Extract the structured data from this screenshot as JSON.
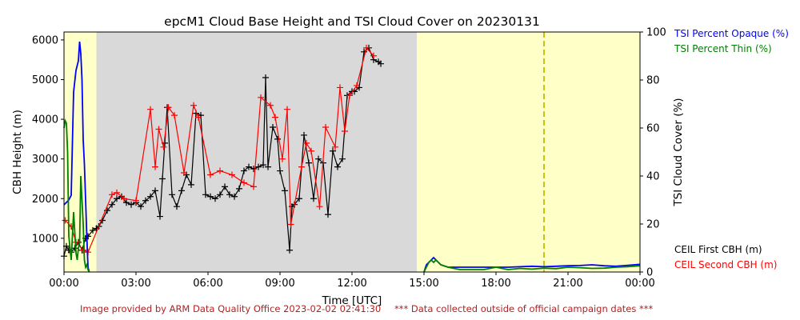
{
  "chart_data": {
    "type": "line",
    "title": "epcM1 Cloud Base Height and TSI Cloud Cover on 20230131",
    "xlabel": "Time [UTC]",
    "ylabel_left": "CBH Height (m)",
    "ylabel_right": "TSI Cloud Cover (%)",
    "x_unit": "hours UTC",
    "xlim": [
      0,
      24
    ],
    "ylim_left": [
      150,
      6200
    ],
    "ylim_right": [
      0,
      100
    ],
    "x_ticks": [
      {
        "v": 0,
        "label": "00:00"
      },
      {
        "v": 3,
        "label": "03:00"
      },
      {
        "v": 6,
        "label": "06:00"
      },
      {
        "v": 9,
        "label": "09:00"
      },
      {
        "v": 12,
        "label": "12:00"
      },
      {
        "v": 15,
        "label": "15:00"
      },
      {
        "v": 18,
        "label": "18:00"
      },
      {
        "v": 21,
        "label": "21:00"
      },
      {
        "v": 24,
        "label": "00:00"
      }
    ],
    "y_ticks_left": [
      1000,
      2000,
      3000,
      4000,
      5000,
      6000
    ],
    "y_ticks_right": [
      0,
      20,
      40,
      60,
      80,
      100
    ],
    "grid": false,
    "background_regions": [
      {
        "x0": 0.0,
        "x1": 1.35,
        "color": "#ffffc8"
      },
      {
        "x0": 1.35,
        "x1": 14.7,
        "color": "#d9d9d9"
      },
      {
        "x0": 14.7,
        "x1": 24.0,
        "color": "#ffffc8"
      }
    ],
    "vline": {
      "x": 20.0,
      "color": "#bfbf00",
      "style": "dashed"
    },
    "legend_right_top": [
      {
        "name": "TSI Percent Opaque (%)",
        "color": "#0000ff"
      },
      {
        "name": "TSI Percent Thin (%)",
        "color": "#008000"
      }
    ],
    "legend_right_bottom": [
      {
        "name": "CEIL First CBH (m)",
        "color": "#000000"
      },
      {
        "name": "CEIL Second CBH (m)",
        "color": "#ff0000"
      }
    ],
    "series": [
      {
        "name": "CEIL First CBH (m)",
        "axis": "left",
        "color": "#000000",
        "marker": "+",
        "x": [
          0.0,
          0.1,
          0.2,
          0.3,
          0.45,
          0.6,
          0.75,
          0.9,
          1.0,
          1.2,
          1.35,
          1.45,
          1.6,
          1.8,
          2.0,
          2.2,
          2.4,
          2.6,
          2.8,
          3.0,
          3.2,
          3.4,
          3.6,
          3.8,
          4.0,
          4.1,
          4.2,
          4.3,
          4.5,
          4.7,
          4.9,
          5.1,
          5.3,
          5.5,
          5.7,
          5.9,
          6.1,
          6.3,
          6.5,
          6.7,
          6.9,
          7.1,
          7.3,
          7.5,
          7.7,
          7.9,
          8.1,
          8.3,
          8.4,
          8.5,
          8.7,
          8.9,
          9.0,
          9.2,
          9.4,
          9.5,
          9.6,
          9.8,
          10.0,
          10.2,
          10.4,
          10.6,
          10.8,
          11.0,
          11.2,
          11.4,
          11.6,
          11.8,
          12.0,
          12.1,
          12.3,
          12.5,
          12.7,
          12.9,
          13.1,
          13.2
        ],
        "y": [
          550,
          800,
          700,
          650,
          750,
          900,
          700,
          1000,
          1050,
          1200,
          1250,
          1300,
          1450,
          1700,
          1850,
          2000,
          2050,
          1900,
          1850,
          1900,
          1800,
          1950,
          2050,
          2200,
          1550,
          2500,
          3400,
          4300,
          2100,
          1800,
          2200,
          2600,
          2350,
          4150,
          4100,
          2100,
          2050,
          2000,
          2100,
          2300,
          2100,
          2050,
          2250,
          2700,
          2800,
          2750,
          2800,
          2850,
          5050,
          2800,
          3800,
          3500,
          2700,
          2200,
          700,
          1800,
          1850,
          2000,
          3600,
          2900,
          2000,
          3000,
          2900,
          1600,
          3200,
          2800,
          3000,
          4600,
          4700,
          4700,
          4800,
          5700,
          5800,
          5500,
          5450,
          5400
        ]
      },
      {
        "name": "CEIL Second CBH (m)",
        "axis": "left",
        "color": "#ff0000",
        "marker": "+",
        "x": [
          0.05,
          0.3,
          0.5,
          0.8,
          1.0,
          2.0,
          2.2,
          2.5,
          3.0,
          3.6,
          3.8,
          3.95,
          4.15,
          4.35,
          4.6,
          5.0,
          5.4,
          5.6,
          6.1,
          6.5,
          7.0,
          7.5,
          7.9,
          8.2,
          8.6,
          8.8,
          9.1,
          9.3,
          9.45,
          9.9,
          10.1,
          10.3,
          10.65,
          10.9,
          11.3,
          11.5,
          11.7,
          11.9,
          12.2,
          12.6,
          12.9
        ],
        "y": [
          1450,
          1300,
          900,
          700,
          650,
          2100,
          2150,
          2000,
          1950,
          4250,
          2800,
          3750,
          3300,
          4300,
          4100,
          2650,
          4350,
          4050,
          2600,
          2700,
          2600,
          2400,
          2300,
          4550,
          4350,
          4050,
          3000,
          4250,
          1350,
          2800,
          3400,
          3200,
          1800,
          3800,
          3300,
          4800,
          3700,
          4600,
          4850,
          5800,
          5600
        ]
      },
      {
        "name": "TSI Percent Opaque (%)",
        "axis": "right",
        "color": "#0000ff",
        "x": [
          0.0,
          0.1,
          0.2,
          0.3,
          0.4,
          0.5,
          0.55,
          0.6,
          0.65,
          0.7,
          0.75,
          0.8,
          0.85,
          0.9,
          0.95,
          1.0,
          1.05,
          15.0,
          15.1,
          15.2,
          15.3,
          15.4,
          15.5,
          15.7,
          16.0,
          16.5,
          17.0,
          17.5,
          18.0,
          18.5,
          19.0,
          19.5,
          20.0,
          20.5,
          21.0,
          21.5,
          22.0,
          22.5,
          23.0,
          23.5,
          24.0
        ],
        "y": [
          28,
          29,
          30,
          32,
          75,
          84,
          86,
          88,
          96,
          91,
          80,
          55,
          45,
          30,
          15,
          2,
          0,
          0,
          3,
          4,
          5,
          6,
          5,
          3,
          2,
          2,
          2,
          2,
          2,
          2,
          2.2,
          2.4,
          2.2,
          2.4,
          2.6,
          2.7,
          3.0,
          2.6,
          2.4,
          2.8,
          3.2
        ]
      },
      {
        "name": "TSI Percent Thin (%)",
        "axis": "right",
        "color": "#008000",
        "x": [
          0.0,
          0.05,
          0.1,
          0.15,
          0.2,
          0.3,
          0.4,
          0.5,
          0.55,
          0.6,
          0.65,
          0.7,
          0.75,
          0.8,
          0.85,
          0.9,
          0.95,
          1.0,
          1.05,
          15.0,
          15.1,
          15.2,
          15.3,
          15.4,
          15.5,
          15.7,
          16.0,
          16.5,
          17.0,
          17.5,
          18.0,
          18.5,
          19.0,
          19.5,
          20.0,
          20.5,
          21.0,
          21.5,
          22.0,
          22.5,
          23.0,
          23.5,
          24.0
        ],
        "y": [
          60,
          63,
          62,
          50,
          15,
          5,
          25,
          8,
          5,
          10,
          12,
          40,
          30,
          20,
          5,
          2,
          3,
          1,
          0,
          0,
          2,
          4,
          5,
          4,
          5,
          3,
          2,
          1,
          1,
          1,
          2,
          1,
          1.5,
          1.2,
          1.6,
          1.4,
          2.0,
          1.8,
          1.5,
          1.6,
          2.0,
          2.2,
          2.6
        ]
      }
    ],
    "footer_left": "Image provided by ARM Data Quality Office 2023-02-02 02:41:30",
    "footer_right": "*** Data collected outside of official campaign dates ***",
    "footer_color": "#b22222"
  }
}
